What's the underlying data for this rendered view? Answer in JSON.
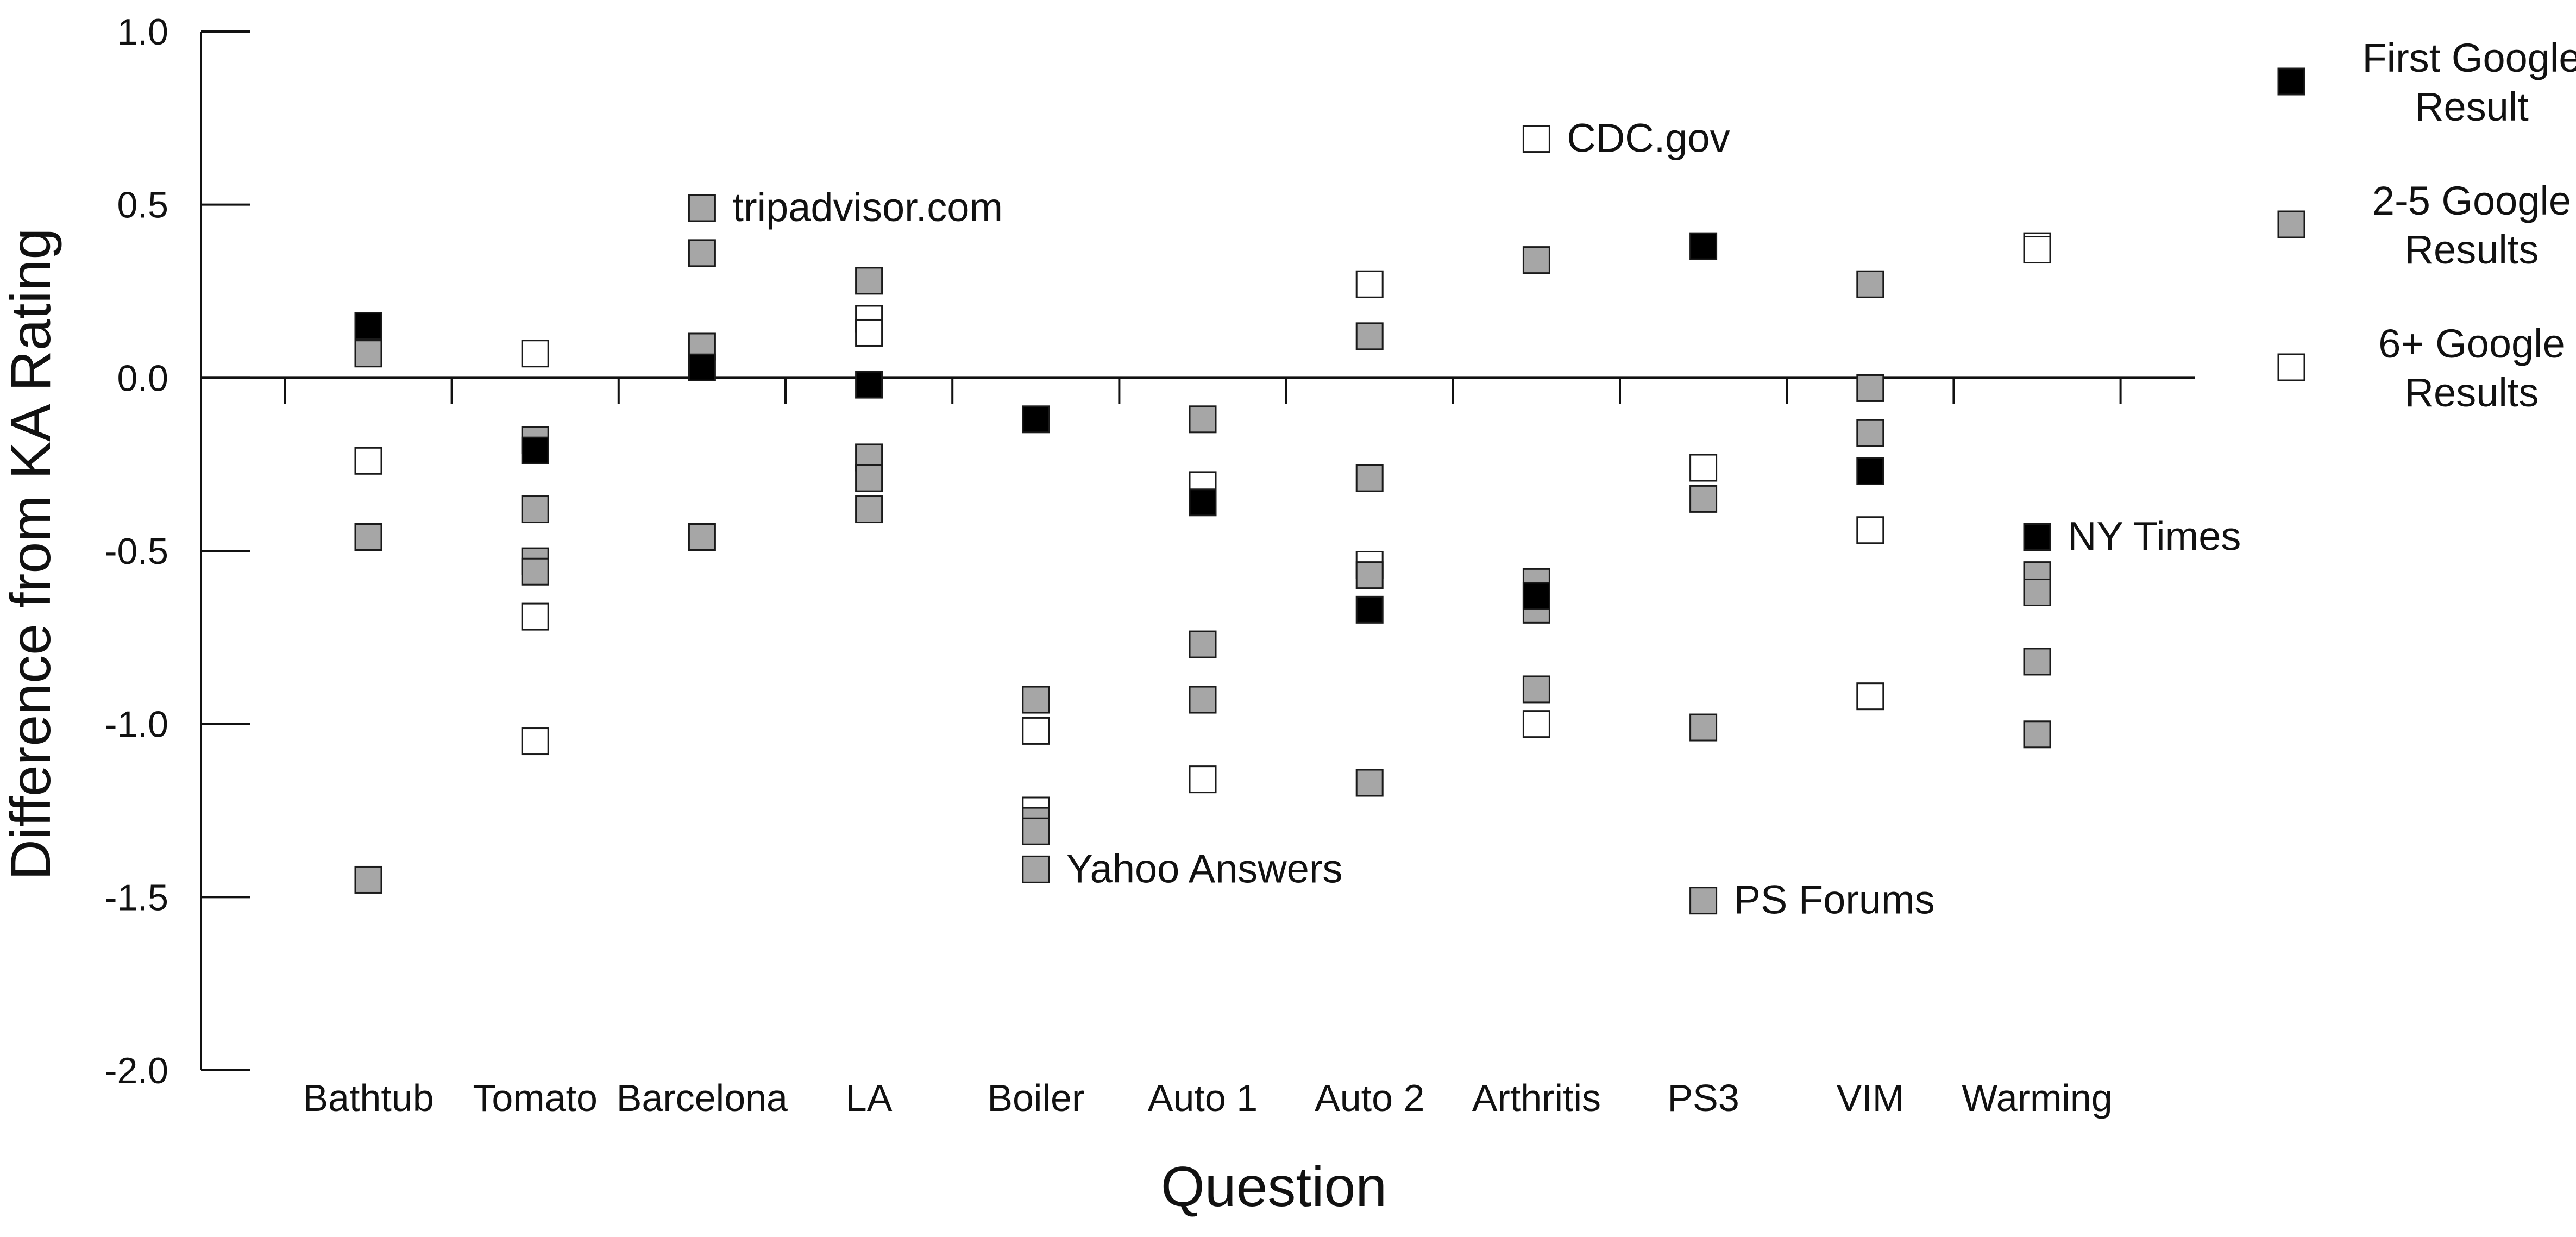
{
  "chart_data": {
    "type": "scatter",
    "title": "",
    "xlabel": "Question",
    "ylabel": "Difference from KA Rating",
    "ylim": [
      -2.0,
      1.0
    ],
    "yticks": [
      1.0,
      0.5,
      0.0,
      -0.5,
      -1.0,
      -1.5,
      -2.0
    ],
    "ytick_labels": [
      "1.0",
      "0.5",
      "0.0",
      "-0.5",
      "-1.0",
      "-1.5",
      "-2.0"
    ],
    "categories": [
      "Bathtub",
      "Tomato",
      "Barcelona",
      "LA",
      "Boiler",
      "Auto 1",
      "Auto 2",
      "Arthritis",
      "PS3",
      "VIM",
      "Warming"
    ],
    "legend_position": "right",
    "series": [
      {
        "name": "First Google Result",
        "color": "#000000",
        "points": [
          {
            "x": "Bathtub",
            "y": 0.15
          },
          {
            "x": "Tomato",
            "y": -0.21
          },
          {
            "x": "Barcelona",
            "y": 0.03
          },
          {
            "x": "LA",
            "y": -0.02
          },
          {
            "x": "Boiler",
            "y": -0.12
          },
          {
            "x": "Auto 1",
            "y": -0.36
          },
          {
            "x": "Auto 2",
            "y": -0.67
          },
          {
            "x": "Arthritis",
            "y": -0.63
          },
          {
            "x": "PS3",
            "y": 0.38
          },
          {
            "x": "VIM",
            "y": -0.27
          },
          {
            "x": "Warming",
            "y": -0.46
          }
        ]
      },
      {
        "name": "2-5 Google Results",
        "color": "#a6a6a6",
        "points": [
          {
            "x": "Bathtub",
            "y": 0.07
          },
          {
            "x": "Bathtub",
            "y": -0.46
          },
          {
            "x": "Bathtub",
            "y": -1.45
          },
          {
            "x": "Tomato",
            "y": -0.18
          },
          {
            "x": "Tomato",
            "y": -0.38
          },
          {
            "x": "Tomato",
            "y": -0.53
          },
          {
            "x": "Tomato",
            "y": -0.56
          },
          {
            "x": "Barcelona",
            "y": 0.49
          },
          {
            "x": "Barcelona",
            "y": 0.36
          },
          {
            "x": "Barcelona",
            "y": 0.09
          },
          {
            "x": "Barcelona",
            "y": -0.46
          },
          {
            "x": "LA",
            "y": 0.28
          },
          {
            "x": "LA",
            "y": -0.23
          },
          {
            "x": "LA",
            "y": -0.29
          },
          {
            "x": "LA",
            "y": -0.38
          },
          {
            "x": "Boiler",
            "y": -0.93
          },
          {
            "x": "Boiler",
            "y": -1.28
          },
          {
            "x": "Boiler",
            "y": -1.31
          },
          {
            "x": "Boiler",
            "y": -1.42
          },
          {
            "x": "Auto 1",
            "y": -0.12
          },
          {
            "x": "Auto 1",
            "y": -0.77
          },
          {
            "x": "Auto 1",
            "y": -0.93
          },
          {
            "x": "Auto 2",
            "y": 0.12
          },
          {
            "x": "Auto 2",
            "y": -0.29
          },
          {
            "x": "Auto 2",
            "y": -0.57
          },
          {
            "x": "Auto 2",
            "y": -1.17
          },
          {
            "x": "Arthritis",
            "y": 0.34
          },
          {
            "x": "Arthritis",
            "y": -0.59
          },
          {
            "x": "Arthritis",
            "y": -0.67
          },
          {
            "x": "Arthritis",
            "y": -0.9
          },
          {
            "x": "PS3",
            "y": -0.35
          },
          {
            "x": "PS3",
            "y": -1.01
          },
          {
            "x": "PS3",
            "y": -1.51
          },
          {
            "x": "VIM",
            "y": 0.27
          },
          {
            "x": "VIM",
            "y": -0.03
          },
          {
            "x": "VIM",
            "y": -0.16
          },
          {
            "x": "Warming",
            "y": -0.57
          },
          {
            "x": "Warming",
            "y": -0.62
          },
          {
            "x": "Warming",
            "y": -0.82
          },
          {
            "x": "Warming",
            "y": -1.03
          }
        ]
      },
      {
        "name": "6+ Google Results",
        "color": "#ffffff",
        "points": [
          {
            "x": "Bathtub",
            "y": -0.24
          },
          {
            "x": "Tomato",
            "y": 0.07
          },
          {
            "x": "Tomato",
            "y": -0.69
          },
          {
            "x": "Tomato",
            "y": -1.05
          },
          {
            "x": "LA",
            "y": 0.17
          },
          {
            "x": "LA",
            "y": 0.13
          },
          {
            "x": "Boiler",
            "y": -1.02
          },
          {
            "x": "Boiler",
            "y": -1.25
          },
          {
            "x": "Auto 1",
            "y": -0.31
          },
          {
            "x": "Auto 1",
            "y": -1.16
          },
          {
            "x": "Auto 2",
            "y": 0.27
          },
          {
            "x": "Auto 2",
            "y": -0.54
          },
          {
            "x": "Arthritis",
            "y": 0.69
          },
          {
            "x": "Arthritis",
            "y": -1.0
          },
          {
            "x": "PS3",
            "y": -0.26
          },
          {
            "x": "VIM",
            "y": -0.44
          },
          {
            "x": "VIM",
            "y": -0.92
          },
          {
            "x": "Warming",
            "y": 0.38
          },
          {
            "x": "Warming",
            "y": 0.37
          }
        ]
      }
    ],
    "annotations": [
      {
        "text": "tripadvisor.com",
        "x": "Barcelona",
        "y": 0.49
      },
      {
        "text": "CDC.gov",
        "x": "Arthritis",
        "y": 0.69
      },
      {
        "text": "Yahoo Answers",
        "x": "Boiler",
        "y": -1.42
      },
      {
        "text": "PS Forums",
        "x": "PS3",
        "y": -1.51
      },
      {
        "text": "NY Times",
        "x": "Warming",
        "y": -0.46
      }
    ],
    "legend": {
      "entries": [
        {
          "lines": [
            "First Google",
            "Result"
          ],
          "color": "#000000"
        },
        {
          "lines": [
            "2-5 Google",
            "Results"
          ],
          "color": "#a6a6a6"
        },
        {
          "lines": [
            "6+ Google",
            "Results"
          ],
          "color": "#ffffff"
        }
      ]
    }
  }
}
